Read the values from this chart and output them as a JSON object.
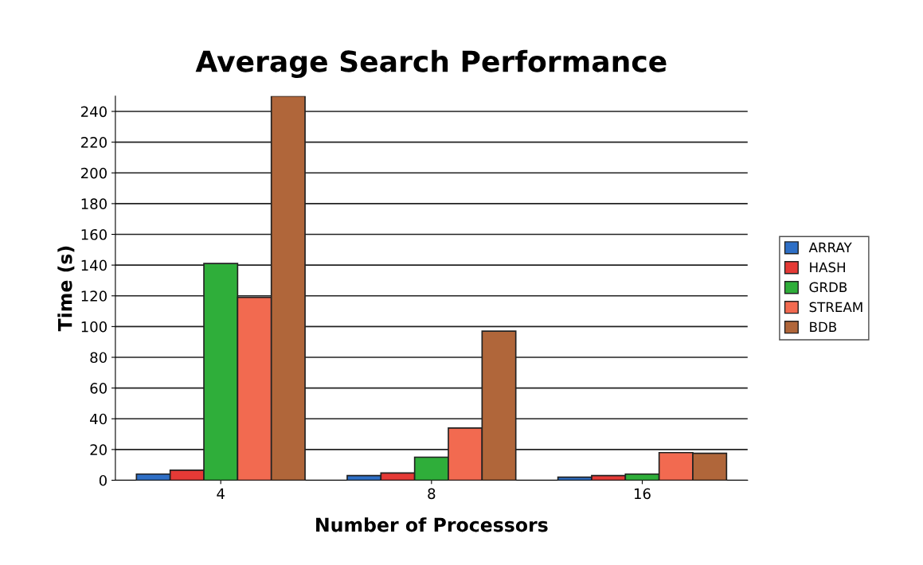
{
  "chart_data": {
    "type": "bar",
    "title": "Average Search Performance",
    "xlabel": "Number of Processors",
    "ylabel": "Time (s)",
    "categories": [
      "4",
      "8",
      "16"
    ],
    "series": [
      {
        "name": "ARRAY",
        "color": "#2e6fc6",
        "values": [
          4,
          3,
          2
        ]
      },
      {
        "name": "HASH",
        "color": "#e53a36",
        "values": [
          6.5,
          4.7,
          3
        ]
      },
      {
        "name": "GRDB",
        "color": "#2fae3a",
        "values": [
          141,
          15,
          4
        ]
      },
      {
        "name": "STREAM",
        "color": "#f26a50",
        "values": [
          119,
          34,
          18
        ]
      },
      {
        "name": "BDB",
        "color": "#b0663a",
        "values": [
          250,
          97,
          17.5
        ]
      }
    ],
    "ylim": [
      0,
      250
    ],
    "yticks": [
      0,
      20,
      40,
      60,
      80,
      100,
      120,
      140,
      160,
      180,
      200,
      220,
      240
    ],
    "grid": "y",
    "legend": "right"
  }
}
